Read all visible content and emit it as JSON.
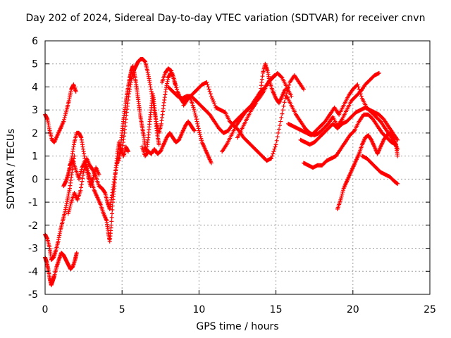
{
  "chart_data": {
    "type": "scatter",
    "title": "Day 202 of 2024, Sidereal Day-to-day VTEC variation (SDTVAR) for receiver cnvn",
    "xlabel": "GPS time / hours",
    "ylabel": "SDTVAR / TECUs",
    "xlim": [
      0,
      25
    ],
    "ylim": [
      -5,
      6
    ],
    "xticks": [
      0,
      5,
      10,
      15,
      20,
      25
    ],
    "yticks": [
      -5,
      -4,
      -3,
      -2,
      -1,
      0,
      1,
      2,
      3,
      4,
      5,
      6
    ],
    "grid": true,
    "marker": "plus",
    "color": "#ff0000",
    "series": [
      {
        "x": [
          0.0,
          0.15,
          0.3,
          0.45,
          0.6,
          0.8,
          1.0,
          1.2,
          1.4,
          1.55,
          1.7,
          1.85,
          2.0
        ],
        "y": [
          2.8,
          2.6,
          2.1,
          1.7,
          1.6,
          1.9,
          2.2,
          2.5,
          3.0,
          3.4,
          3.9,
          4.1,
          3.8
        ]
      },
      {
        "x": [
          0.0,
          0.1,
          0.2,
          0.3,
          0.4,
          0.5,
          0.6,
          0.75,
          0.9,
          1.05,
          1.2,
          1.35,
          1.5,
          1.65,
          1.8,
          1.95,
          2.05
        ],
        "y": [
          -3.4,
          -3.6,
          -3.9,
          -4.3,
          -4.6,
          -4.4,
          -4.2,
          -3.8,
          -3.5,
          -3.2,
          -3.3,
          -3.5,
          -3.7,
          -3.9,
          -3.8,
          -3.5,
          -3.2
        ]
      },
      {
        "x": [
          0.0,
          0.15,
          0.3,
          0.4,
          0.55,
          0.7,
          0.85,
          1.0,
          1.15,
          1.3,
          1.45,
          1.6,
          1.75,
          1.9
        ],
        "y": [
          -2.4,
          -2.6,
          -3.0,
          -3.5,
          -3.4,
          -3.1,
          -2.7,
          -2.2,
          -1.8,
          -1.4,
          -0.9,
          -0.4,
          0.3,
          1.0
        ]
      },
      {
        "x": [
          1.2,
          1.35,
          1.5,
          1.6,
          1.75,
          1.9,
          2.05,
          2.2,
          2.35,
          2.5,
          2.65,
          2.8,
          2.95,
          3.1,
          3.3,
          3.5
        ],
        "y": [
          -0.3,
          -0.1,
          0.2,
          0.5,
          1.0,
          1.6,
          2.0,
          2.0,
          1.8,
          1.2,
          0.6,
          0.1,
          -0.3,
          0.0,
          0.5,
          0.2
        ]
      },
      {
        "x": [
          1.6,
          1.8,
          2.0,
          2.2,
          2.4,
          2.6,
          2.8,
          3.0,
          3.2,
          3.4,
          3.6,
          3.8,
          4.0,
          4.1,
          4.2,
          4.3,
          4.4,
          4.5,
          4.6,
          4.7,
          4.8,
          4.9
        ],
        "y": [
          0.6,
          0.8,
          0.4,
          0.0,
          0.5,
          0.8,
          0.3,
          -0.1,
          -0.5,
          -0.8,
          -1.1,
          -1.5,
          -1.8,
          -2.3,
          -2.7,
          -2.0,
          -1.0,
          -0.3,
          0.5,
          1.1,
          1.6,
          1.2
        ]
      },
      {
        "x": [
          1.5,
          1.7,
          1.9,
          2.1,
          2.3,
          2.5,
          2.7,
          2.9,
          3.1,
          3.3,
          3.5,
          3.7,
          3.9,
          4.05,
          4.2,
          4.35,
          4.5,
          4.65,
          4.8,
          4.95,
          5.1,
          5.25,
          5.4
        ],
        "y": [
          -1.5,
          -1.0,
          -0.6,
          -0.9,
          -0.5,
          0.3,
          0.9,
          0.6,
          0.4,
          0.1,
          -0.3,
          -0.4,
          -0.6,
          -1.0,
          -1.3,
          -0.7,
          0.0,
          0.6,
          1.0,
          1.3,
          1.0,
          1.4,
          1.2
        ]
      },
      {
        "x": [
          4.8,
          4.9,
          5.0,
          5.1,
          5.2,
          5.3,
          5.4,
          5.5,
          5.6,
          5.7,
          5.8,
          5.9,
          6.0,
          6.1,
          6.2,
          6.3,
          6.4,
          6.5,
          6.6,
          6.7,
          6.8,
          6.9,
          7.0,
          7.1,
          7.2,
          7.3,
          7.4
        ],
        "y": [
          0.8,
          1.4,
          2.0,
          2.6,
          3.1,
          3.6,
          4.0,
          4.4,
          4.7,
          4.9,
          4.6,
          4.2,
          3.7,
          3.2,
          2.7,
          2.3,
          1.9,
          1.4,
          1.2,
          1.8,
          2.5,
          3.1,
          3.7,
          3.2,
          2.5,
          1.9,
          1.5
        ]
      },
      {
        "x": [
          5.0,
          5.15,
          5.3,
          5.45,
          5.6,
          5.75,
          5.9,
          6.05,
          6.2,
          6.35,
          6.5,
          6.65,
          6.8,
          6.95,
          7.1,
          7.25,
          7.4,
          7.55,
          7.7,
          7.85,
          8.0,
          8.15,
          8.3,
          8.45
        ],
        "y": [
          1.2,
          2.0,
          2.9,
          3.7,
          4.3,
          4.7,
          4.9,
          5.1,
          5.2,
          5.2,
          5.1,
          4.7,
          4.2,
          3.6,
          3.0,
          2.4,
          2.0,
          2.4,
          3.2,
          3.9,
          4.4,
          4.6,
          4.5,
          4.1
        ]
      },
      {
        "x": [
          6.3,
          6.5,
          6.7,
          6.9,
          7.1,
          7.3,
          7.5,
          7.7,
          7.9,
          8.1,
          8.3,
          8.5,
          8.7,
          8.9,
          9.1,
          9.3,
          9.5,
          9.7
        ],
        "y": [
          1.4,
          1.0,
          1.2,
          1.1,
          1.3,
          1.1,
          1.2,
          1.5,
          1.8,
          2.0,
          1.8,
          1.6,
          1.7,
          2.0,
          2.3,
          2.5,
          2.3,
          2.1
        ]
      },
      {
        "x": [
          7.6,
          7.8,
          8.0,
          8.2,
          8.4,
          8.6,
          8.8,
          9.0,
          9.2,
          9.4,
          9.6,
          9.8,
          10.0,
          10.2,
          10.4,
          10.6,
          10.8
        ],
        "y": [
          4.2,
          4.6,
          4.8,
          4.7,
          4.3,
          3.8,
          3.5,
          3.3,
          3.5,
          3.6,
          3.2,
          2.7,
          2.1,
          1.6,
          1.3,
          1.0,
          0.7
        ]
      },
      {
        "x": [
          8.0,
          8.3,
          8.6,
          8.9,
          9.2,
          9.5,
          9.8,
          10.1,
          10.4,
          10.7,
          11.0,
          11.3,
          11.6,
          11.9,
          12.2,
          12.5,
          12.8,
          13.1,
          13.4,
          13.7,
          14.0,
          14.3,
          14.6,
          14.9
        ],
        "y": [
          4.0,
          3.8,
          3.6,
          3.5,
          3.6,
          3.6,
          3.4,
          3.2,
          3.0,
          2.8,
          2.5,
          2.2,
          2.0,
          2.1,
          2.4,
          2.6,
          2.8,
          3.0,
          3.2,
          3.5,
          3.8,
          4.0,
          4.3,
          4.5
        ]
      },
      {
        "x": [
          9.0,
          9.3,
          9.6,
          9.9,
          10.2,
          10.5,
          10.8,
          11.1,
          11.4,
          11.7,
          12.0,
          12.3,
          12.6,
          12.9,
          13.2,
          13.5,
          13.8,
          14.1,
          14.4,
          14.7,
          15.0,
          15.3,
          15.6,
          15.9,
          16.2,
          16.5,
          16.8
        ],
        "y": [
          3.2,
          3.5,
          3.7,
          3.9,
          4.1,
          4.2,
          3.6,
          3.1,
          3.0,
          2.9,
          2.5,
          2.3,
          2.1,
          1.8,
          1.6,
          1.4,
          1.2,
          1.0,
          0.8,
          0.9,
          1.5,
          2.5,
          3.5,
          4.2,
          4.5,
          4.2,
          3.9
        ]
      },
      {
        "x": [
          11.5,
          11.8,
          12.1,
          12.4,
          12.7,
          13.0,
          13.3,
          13.6,
          13.9,
          14.2,
          14.5,
          14.8,
          15.1,
          15.4,
          15.7,
          16.0
        ],
        "y": [
          1.2,
          1.5,
          1.9,
          2.3,
          2.6,
          2.9,
          3.1,
          3.3,
          3.5,
          3.8,
          4.2,
          4.4,
          4.6,
          4.4,
          4.0,
          3.6
        ]
      },
      {
        "x": [
          12.5,
          12.8,
          13.1,
          13.4,
          13.7,
          14.0,
          14.15,
          14.3,
          14.45,
          14.6,
          14.8,
          15.0,
          15.2,
          15.4,
          15.6
        ],
        "y": [
          1.8,
          2.2,
          2.6,
          3.0,
          3.3,
          3.8,
          4.6,
          5.0,
          4.7,
          4.2,
          3.8,
          3.5,
          3.3,
          3.6,
          3.9
        ]
      },
      {
        "x": [
          15.7,
          16.0,
          16.3,
          16.6,
          16.9,
          17.2,
          17.5,
          17.8,
          18.1,
          18.4,
          18.7,
          19.0,
          19.3,
          19.6,
          19.9,
          20.2,
          20.5,
          20.8,
          21.1,
          21.4,
          21.7
        ],
        "y": [
          3.6,
          3.2,
          2.8,
          2.5,
          2.2,
          2.0,
          1.9,
          2.0,
          2.2,
          2.4,
          2.7,
          2.3,
          2.6,
          3.0,
          3.4,
          3.6,
          3.8,
          4.1,
          4.3,
          4.5,
          4.6
        ]
      },
      {
        "x": [
          15.8,
          16.1,
          16.4,
          16.7,
          17.0,
          17.3,
          17.6,
          17.9,
          18.2,
          18.5,
          18.8,
          19.1,
          19.4,
          19.7,
          20.0,
          20.3,
          20.6,
          20.9,
          21.2,
          21.5,
          21.8,
          22.1,
          22.4,
          22.7,
          22.9
        ],
        "y": [
          2.4,
          2.3,
          2.2,
          2.1,
          2.0,
          1.9,
          2.1,
          2.3,
          2.5,
          2.8,
          3.1,
          2.8,
          3.2,
          3.6,
          3.9,
          4.1,
          3.5,
          3.1,
          2.9,
          2.7,
          2.5,
          2.2,
          1.9,
          1.6,
          1.3
        ]
      },
      {
        "x": [
          16.6,
          16.9,
          17.2,
          17.5,
          17.8,
          18.1,
          18.4,
          18.7,
          19.0,
          19.3,
          19.6,
          19.9,
          20.2,
          20.5,
          20.8,
          21.1,
          21.4,
          21.7,
          22.0,
          22.3,
          22.6,
          22.9
        ],
        "y": [
          1.7,
          1.6,
          1.5,
          1.6,
          1.8,
          2.0,
          2.2,
          2.4,
          2.2,
          2.4,
          2.5,
          2.7,
          2.9,
          3.0,
          3.1,
          3.0,
          2.9,
          2.8,
          2.6,
          2.3,
          2.0,
          1.7
        ]
      },
      {
        "x": [
          16.8,
          17.1,
          17.4,
          17.7,
          18.0,
          18.3,
          18.6,
          18.9,
          19.2,
          19.5,
          19.8,
          20.1,
          20.4,
          20.7,
          21.0,
          21.3,
          21.6,
          21.9,
          22.2,
          22.5,
          22.8
        ],
        "y": [
          0.7,
          0.6,
          0.5,
          0.6,
          0.6,
          0.8,
          0.9,
          1.0,
          1.3,
          1.6,
          1.9,
          2.1,
          2.5,
          2.8,
          2.8,
          2.6,
          2.3,
          2.0,
          1.8,
          1.6,
          1.5
        ]
      },
      {
        "x": [
          19.0,
          19.2,
          19.4,
          19.6,
          19.8,
          20.0,
          20.2,
          20.4,
          20.6,
          20.8,
          21.0,
          21.2,
          21.4,
          21.6,
          21.8,
          22.0,
          22.2,
          22.4,
          22.6,
          22.8,
          22.9
        ],
        "y": [
          -1.3,
          -0.9,
          -0.4,
          -0.1,
          0.2,
          0.5,
          0.8,
          1.1,
          1.5,
          1.8,
          1.9,
          1.7,
          1.4,
          1.1,
          1.4,
          1.7,
          1.9,
          2.0,
          1.9,
          1.5,
          1.0
        ]
      },
      {
        "x": [
          20.6,
          20.9,
          21.2,
          21.5,
          21.8,
          22.1,
          22.4,
          22.7,
          22.9
        ],
        "y": [
          1.0,
          0.9,
          0.7,
          0.5,
          0.3,
          0.2,
          0.1,
          -0.1,
          -0.2
        ]
      }
    ]
  }
}
